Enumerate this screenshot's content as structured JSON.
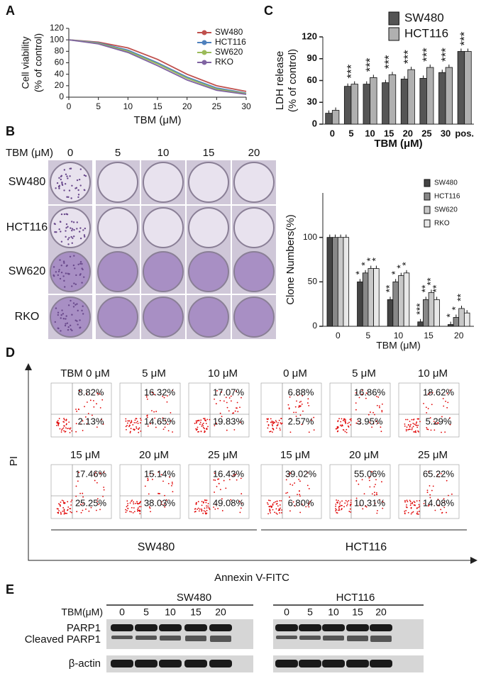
{
  "chart_data": [
    {
      "type": "line",
      "panel": "A",
      "x_label": "TBM (μM)",
      "y_label": [
        "Cell viability",
        "(% of control)"
      ],
      "x": [
        0,
        5,
        10,
        15,
        20,
        25,
        30
      ],
      "series": [
        {
          "name": "SW480",
          "color": "#c0504d",
          "values": [
            100,
            96,
            86,
            66,
            40,
            20,
            10
          ]
        },
        {
          "name": "HCT116",
          "color": "#4f81bd",
          "values": [
            100,
            95,
            82,
            60,
            35,
            16,
            7
          ]
        },
        {
          "name": "SW620",
          "color": "#9bbb59",
          "values": [
            100,
            94,
            80,
            58,
            33,
            14,
            6
          ]
        },
        {
          "name": "RKO",
          "color": "#8064a2",
          "values": [
            100,
            93,
            78,
            55,
            30,
            12,
            5
          ]
        }
      ],
      "xlim": [
        0,
        30
      ],
      "xticks": [
        0,
        5,
        10,
        15,
        20,
        25,
        30
      ],
      "ylim": [
        0,
        120
      ],
      "yticks": [
        0,
        20,
        40,
        60,
        80,
        100,
        120
      ],
      "legend": "upper right"
    },
    {
      "type": "bar",
      "panel": "C",
      "x_label": "TBM (μM)",
      "y_label": [
        "LDH release",
        "(% of control)"
      ],
      "categories": [
        "0",
        "5",
        "10",
        "15",
        "20",
        "25",
        "30",
        "pos."
      ],
      "series": [
        {
          "name": "SW480",
          "color": "#555555",
          "values": [
            15,
            52,
            55,
            57,
            62,
            63,
            71,
            100
          ]
        },
        {
          "name": "HCT116",
          "color": "#b0b0b0",
          "values": [
            19,
            55,
            64,
            68,
            75,
            78,
            78,
            100
          ]
        }
      ],
      "significance": [
        null,
        "***",
        "***",
        "***",
        "***",
        "***",
        "***",
        "***"
      ],
      "ylim": [
        0,
        120
      ],
      "yticks": [
        0,
        30,
        60,
        90,
        120
      ],
      "legend": "upper left"
    },
    {
      "type": "bar",
      "panel": "B",
      "x_label": "TBM (μM)",
      "y_label": [
        "Clone Numbers(%)"
      ],
      "categories": [
        "0",
        "5",
        "10",
        "15",
        "20"
      ],
      "series": [
        {
          "name": "SW480",
          "color": "#444444",
          "values": [
            100,
            50,
            30,
            5,
            2
          ],
          "significance": [
            null,
            "*",
            "**",
            "***",
            "*"
          ]
        },
        {
          "name": "HCT116",
          "color": "#888888",
          "values": [
            100,
            60,
            50,
            30,
            10
          ],
          "significance": [
            null,
            "*",
            "*",
            "**",
            "*"
          ]
        },
        {
          "name": "SW620",
          "color": "#c8c8c8",
          "values": [
            100,
            65,
            57,
            38,
            20
          ],
          "significance": [
            null,
            "*",
            "*",
            "**",
            "**"
          ]
        },
        {
          "name": "RKO",
          "color": "#e8e8e8",
          "values": [
            100,
            65,
            60,
            30,
            15
          ],
          "significance": [
            null,
            "*",
            "*",
            "**",
            null
          ]
        }
      ],
      "ylim": [
        0,
        150
      ],
      "yticks": [
        0,
        50,
        100
      ],
      "legend": "upper right"
    }
  ],
  "colonies": {
    "dose_label": "TBM (μM)",
    "doses": [
      "0",
      "5",
      "10",
      "15",
      "20"
    ],
    "cell_lines": [
      "SW480",
      "HCT116",
      "SW620",
      "RKO"
    ]
  },
  "flow": {
    "panel": "D",
    "y_label": "PI",
    "x_label": "Annexin V-FITC",
    "groups": [
      {
        "name": "SW480",
        "plots": [
          {
            "dose": "TBM 0 μM",
            "upper_right": "8.82%",
            "lower_right": "2.13%"
          },
          {
            "dose": "5 μM",
            "upper_right": "16.32%",
            "lower_right": "14.65%"
          },
          {
            "dose": "10 μM",
            "upper_right": "17.07%",
            "lower_right": "19.83%"
          },
          {
            "dose": "15 μM",
            "upper_right": "17.46%",
            "lower_right": "25.25%"
          },
          {
            "dose": "20 μM",
            "upper_right": "15.14%",
            "lower_right": "38.03%"
          },
          {
            "dose": "25 μM",
            "upper_right": "16.43%",
            "lower_right": "49.08%"
          }
        ]
      },
      {
        "name": "HCT116",
        "plots": [
          {
            "dose": "0 μM",
            "upper_right": "6.88%",
            "lower_right": "2.57%"
          },
          {
            "dose": "5 μM",
            "upper_right": "16.86%",
            "lower_right": "3.95%"
          },
          {
            "dose": "10 μM",
            "upper_right": "18.62%",
            "lower_right": "5.29%"
          },
          {
            "dose": "15 μM",
            "upper_right": "39.02%",
            "lower_right": "6.80%"
          },
          {
            "dose": "20 μM",
            "upper_right": "55.06%",
            "lower_right": "10.31%"
          },
          {
            "dose": "25 μM",
            "upper_right": "65.22%",
            "lower_right": "14.08%"
          }
        ]
      }
    ]
  },
  "blot": {
    "panel": "E",
    "dose_label": "TBM(μM)",
    "groups": [
      {
        "name": "SW480",
        "doses": [
          "0",
          "5",
          "10",
          "15",
          "20"
        ]
      },
      {
        "name": "HCT116",
        "doses": [
          "0",
          "5",
          "10",
          "15",
          "20"
        ]
      }
    ],
    "rows": [
      "PARP1",
      "Cleaved PARP1",
      "β-actin"
    ]
  }
}
